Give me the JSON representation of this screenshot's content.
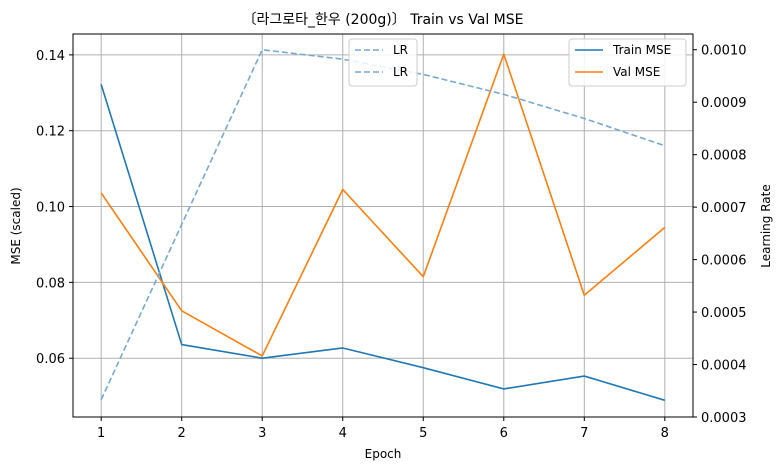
{
  "chart_data": {
    "type": "line",
    "title": "〔라그로타_한우 (200g)〕 Train vs Val MSE",
    "xlabel": "Epoch",
    "ylabel": "MSE (scaled)",
    "y2label": "Learning Rate",
    "x": [
      1,
      2,
      3,
      4,
      5,
      6,
      7,
      8
    ],
    "xlim": [
      0.65,
      8.35
    ],
    "ylim": [
      0.0445,
      0.1455
    ],
    "y2lim": [
      0.0003,
      0.00103
    ],
    "yticks": [
      "0.06",
      "0.08",
      "0.10",
      "0.12",
      "0.14"
    ],
    "y2ticks": [
      "0.0003",
      "0.0004",
      "0.0005",
      "0.0006",
      "0.0007",
      "0.0008",
      "0.0009",
      "0.0010"
    ],
    "xticks": [
      "1",
      "2",
      "3",
      "4",
      "5",
      "6",
      "7",
      "8"
    ],
    "grid": true,
    "series": [
      {
        "name": "Train MSE",
        "axis": "left",
        "color": "#1f77b4",
        "style": "solid",
        "values": [
          0.1322,
          0.0636,
          0.06,
          0.0627,
          0.0575,
          0.0519,
          0.0553,
          0.0489
        ]
      },
      {
        "name": "Val MSE",
        "axis": "left",
        "color": "#ff7f0e",
        "style": "solid",
        "values": [
          0.1036,
          0.0725,
          0.0606,
          0.1045,
          0.0815,
          0.1402,
          0.0766,
          0.0945
        ]
      },
      {
        "name": "LR",
        "axis": "right",
        "color": "#77a9d0",
        "style": "dashed",
        "values": [
          0.000333,
          0.000667,
          0.001,
          0.000982,
          0.000953,
          0.000915,
          0.000869,
          0.000817
        ]
      }
    ],
    "legend_left": {
      "placement": "top-center",
      "entries": [
        "LR",
        "LR"
      ]
    },
    "legend_right": {
      "placement": "top-right",
      "entries": [
        "Train MSE",
        "Val MSE"
      ]
    }
  }
}
